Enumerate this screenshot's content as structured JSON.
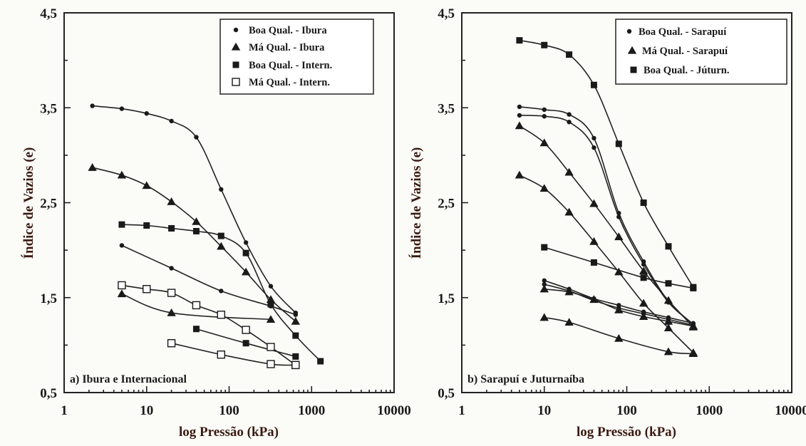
{
  "chart_data": [
    {
      "type": "line",
      "panel_label": "a) Ibura e Internacional",
      "xlabel": "log Pressão (kPa)",
      "ylabel": "Índice de Vazios (e)",
      "x_scale": "log",
      "xlim": [
        1,
        10000
      ],
      "ylim": [
        0.5,
        4.5
      ],
      "x_ticks": [
        "1",
        "10",
        "100",
        "1000",
        "10000"
      ],
      "y_ticks": [
        "0,5",
        "1,5",
        "2,5",
        "3,5",
        "4,5"
      ],
      "legend": {
        "placement": "top-right",
        "entries": [
          {
            "label": "Boa Qual. - Ibura",
            "marker": "circle"
          },
          {
            "label": "Má Qual. - Ibura",
            "marker": "triangle"
          },
          {
            "label": "Boa Qual. - Intern.",
            "marker": "square"
          },
          {
            "label": "Má Qual. - Intern.",
            "marker": "square-open"
          }
        ]
      },
      "series": [
        {
          "marker": "circle",
          "x": [
            2.2,
            5,
            10,
            20,
            40,
            80,
            160,
            320,
            640
          ],
          "y": [
            3.52,
            3.49,
            3.44,
            3.36,
            3.19,
            2.64,
            2.08,
            1.62,
            1.34
          ]
        },
        {
          "marker": "circle",
          "x": [
            5,
            20,
            80,
            320,
            640
          ],
          "y": [
            2.05,
            1.81,
            1.57,
            1.41,
            1.32
          ]
        },
        {
          "marker": "triangle",
          "x": [
            2.2,
            5,
            10,
            20,
            40,
            80,
            160,
            320,
            640
          ],
          "y": [
            2.87,
            2.79,
            2.68,
            2.51,
            2.3,
            2.04,
            1.77,
            1.48,
            1.25
          ]
        },
        {
          "marker": "triangle",
          "x": [
            5,
            20,
            320
          ],
          "y": [
            1.54,
            1.34,
            1.27
          ]
        },
        {
          "marker": "square",
          "x": [
            5,
            10,
            20,
            40,
            80,
            160,
            320,
            640,
            1280
          ],
          "y": [
            2.27,
            2.26,
            2.23,
            2.2,
            2.15,
            1.97,
            1.43,
            1.1,
            0.83
          ]
        },
        {
          "marker": "square",
          "x": [
            40,
            160,
            640
          ],
          "y": [
            1.17,
            1.02,
            0.88
          ]
        },
        {
          "marker": "square-open",
          "x": [
            5,
            10,
            20,
            40,
            80,
            160,
            320,
            640
          ],
          "y": [
            1.63,
            1.59,
            1.55,
            1.42,
            1.32,
            1.16,
            0.98,
            0.79
          ]
        },
        {
          "marker": "square-open",
          "x": [
            20,
            80,
            320,
            640
          ],
          "y": [
            1.02,
            0.9,
            0.8,
            0.79
          ]
        }
      ]
    },
    {
      "type": "line",
      "panel_label": "b) Sarapuí e Juturnaíba",
      "xlabel": "log Pressão (kPa)",
      "ylabel": "Índice de Vazios (e)",
      "x_scale": "log",
      "xlim": [
        1,
        10000
      ],
      "ylim": [
        0.5,
        4.5
      ],
      "x_ticks": [
        "1",
        "10",
        "100",
        "1000",
        "10000"
      ],
      "y_ticks": [
        "0,5",
        "1,5",
        "2,5",
        "3,5",
        "4,5"
      ],
      "legend": {
        "placement": "top-right",
        "entries": [
          {
            "label": "Boa Qual. - Sarapuí",
            "marker": "circle"
          },
          {
            "label": "Má Qual. - Sarapuí",
            "marker": "triangle"
          },
          {
            "label": "Boa Qual. - Júturn.",
            "marker": "square"
          }
        ]
      },
      "series": [
        {
          "marker": "circle",
          "x": [
            5,
            10,
            20,
            40,
            80,
            160,
            320,
            640
          ],
          "y": [
            3.51,
            3.48,
            3.43,
            3.18,
            2.39,
            1.88,
            1.46,
            1.22
          ]
        },
        {
          "marker": "circle",
          "x": [
            5,
            10,
            20,
            40,
            80,
            160,
            320,
            640
          ],
          "y": [
            3.42,
            3.41,
            3.35,
            3.08,
            2.35,
            1.85,
            1.45,
            1.22
          ]
        },
        {
          "marker": "circle",
          "x": [
            10,
            20,
            40,
            80,
            160,
            320,
            640
          ],
          "y": [
            1.68,
            1.59,
            1.49,
            1.42,
            1.35,
            1.29,
            1.23
          ]
        },
        {
          "marker": "circle",
          "x": [
            10,
            20,
            40,
            80,
            160,
            320,
            640
          ],
          "y": [
            1.64,
            1.57,
            1.47,
            1.39,
            1.33,
            1.27,
            1.21
          ]
        },
        {
          "marker": "triangle",
          "x": [
            5,
            10,
            20,
            40,
            80,
            160,
            320,
            640
          ],
          "y": [
            3.31,
            3.13,
            2.82,
            2.49,
            2.14,
            1.78,
            1.47,
            1.19
          ]
        },
        {
          "marker": "triangle",
          "x": [
            5,
            10,
            20,
            40,
            80,
            160,
            320,
            640
          ],
          "y": [
            2.79,
            2.65,
            2.4,
            2.09,
            1.77,
            1.44,
            1.18,
            0.92
          ]
        },
        {
          "marker": "triangle",
          "x": [
            10,
            20,
            40,
            80,
            160,
            320,
            640
          ],
          "y": [
            1.59,
            1.56,
            1.48,
            1.37,
            1.3,
            1.25,
            1.2
          ]
        },
        {
          "marker": "triangle",
          "x": [
            10,
            20,
            80,
            320,
            640
          ],
          "y": [
            1.29,
            1.24,
            1.07,
            0.93,
            0.91
          ]
        },
        {
          "marker": "square",
          "x": [
            5,
            10,
            20,
            40,
            80,
            160,
            320,
            640
          ],
          "y": [
            4.21,
            4.16,
            4.06,
            3.74,
            3.12,
            2.5,
            2.04,
            1.61
          ]
        },
        {
          "marker": "square",
          "x": [
            10,
            40,
            160,
            320,
            640
          ],
          "y": [
            2.03,
            1.87,
            1.71,
            1.65,
            1.6
          ]
        }
      ]
    }
  ]
}
